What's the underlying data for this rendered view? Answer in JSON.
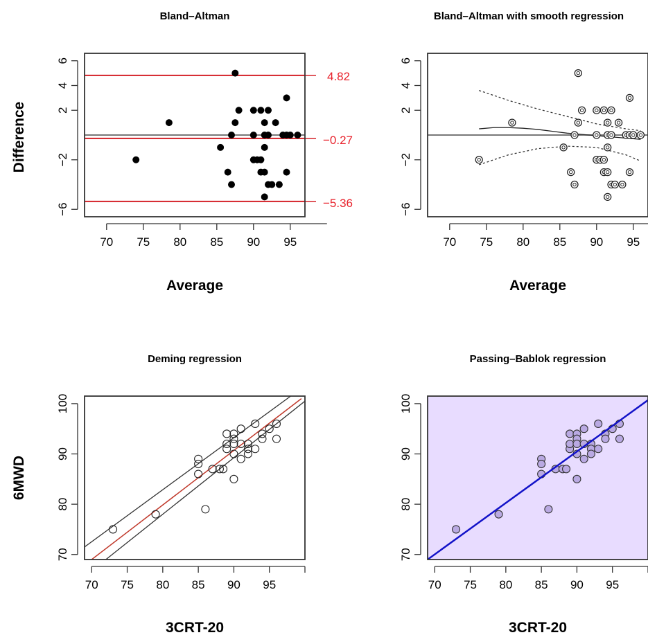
{
  "figure": {
    "ylabel_top": "Difference",
    "ylabel_bottom": "6MWD"
  },
  "colors": {
    "limit_line": "#d42027",
    "limit_text": "#e8212b",
    "pb_fill": "#e8dcff",
    "pb_line": "#1212c8",
    "pb_point": "#b9a9e2",
    "deming_line": "#c0392b"
  },
  "chart_data": [
    {
      "id": "bland_altman",
      "type": "scatter",
      "title": "Bland–Altman",
      "xlabel": "Average",
      "ylabel": "Difference",
      "xlim": [
        67,
        97
      ],
      "ylim": [
        -6.6,
        6.6
      ],
      "xticks": [
        70,
        75,
        80,
        85,
        90,
        95
      ],
      "yticks": [
        -6,
        -2,
        2,
        4,
        6
      ],
      "mean_diff": -0.27,
      "upper_loa": 4.82,
      "lower_loa": -5.36,
      "limit_labels": [
        "4.82",
        "−0.27",
        "−5.36"
      ],
      "points": [
        [
          74,
          -2
        ],
        [
          78.5,
          1
        ],
        [
          85.5,
          -1
        ],
        [
          86.5,
          -3
        ],
        [
          87,
          -4
        ],
        [
          87,
          0
        ],
        [
          87.5,
          1
        ],
        [
          87.5,
          5
        ],
        [
          88,
          2
        ],
        [
          90,
          2
        ],
        [
          90,
          -2
        ],
        [
          90,
          0
        ],
        [
          90.5,
          -2
        ],
        [
          91,
          2
        ],
        [
          91,
          -3
        ],
        [
          91,
          -2
        ],
        [
          91.5,
          0
        ],
        [
          91.5,
          1
        ],
        [
          91.5,
          -1
        ],
        [
          91.5,
          -5
        ],
        [
          91.5,
          -3
        ],
        [
          92,
          2
        ],
        [
          92,
          0
        ],
        [
          92,
          -4
        ],
        [
          92.5,
          -4
        ],
        [
          93,
          1
        ],
        [
          93.5,
          -4
        ],
        [
          94,
          0
        ],
        [
          94.5,
          0
        ],
        [
          94.5,
          3
        ],
        [
          94.5,
          -3
        ],
        [
          95,
          0
        ],
        [
          96,
          0
        ]
      ]
    },
    {
      "id": "bland_altman_smooth",
      "type": "scatter",
      "title": "Bland–Altman with smooth regression",
      "xlabel": "Average",
      "ylabel": "Difference",
      "xlim": [
        67,
        97
      ],
      "ylim": [
        -6.6,
        6.6
      ],
      "xticks": [
        70,
        75,
        80,
        85,
        90,
        95
      ],
      "yticks": [
        -6,
        -2,
        2,
        4,
        6
      ],
      "points": [
        [
          74,
          -2
        ],
        [
          78.5,
          1
        ],
        [
          85.5,
          -1
        ],
        [
          86.5,
          -3
        ],
        [
          87,
          -4
        ],
        [
          87,
          0
        ],
        [
          87.5,
          1
        ],
        [
          87.5,
          5
        ],
        [
          88,
          2
        ],
        [
          90,
          2
        ],
        [
          90,
          -2
        ],
        [
          90,
          0
        ],
        [
          90.5,
          -2
        ],
        [
          91,
          2
        ],
        [
          91,
          -3
        ],
        [
          91,
          -2
        ],
        [
          91.5,
          0
        ],
        [
          91.5,
          1
        ],
        [
          91.5,
          -1
        ],
        [
          91.5,
          -5
        ],
        [
          91.5,
          -3
        ],
        [
          92,
          2
        ],
        [
          92,
          0
        ],
        [
          92,
          -4
        ],
        [
          92.5,
          -4
        ],
        [
          93,
          1
        ],
        [
          93.5,
          -4
        ],
        [
          94,
          0
        ],
        [
          94.5,
          0
        ],
        [
          94.5,
          3
        ],
        [
          94.5,
          -3
        ],
        [
          95,
          0
        ],
        [
          96,
          0
        ]
      ],
      "smooth_fit": [
        [
          74,
          0.5
        ],
        [
          76,
          0.6
        ],
        [
          78,
          0.6
        ],
        [
          80,
          0.55
        ],
        [
          82,
          0.45
        ],
        [
          84,
          0.3
        ],
        [
          86,
          0.15
        ],
        [
          88,
          0.05
        ],
        [
          90,
          -0.05
        ],
        [
          92,
          -0.15
        ],
        [
          94,
          -0.25
        ],
        [
          96,
          -0.35
        ]
      ],
      "smooth_upper": [
        [
          74,
          3.6
        ],
        [
          78,
          2.8
        ],
        [
          82,
          2.1
        ],
        [
          86,
          1.5
        ],
        [
          90,
          0.9
        ],
        [
          94,
          0.5
        ],
        [
          96,
          0.35
        ]
      ],
      "smooth_lower": [
        [
          74,
          -2.4
        ],
        [
          78,
          -1.6
        ],
        [
          82,
          -1.1
        ],
        [
          86,
          -0.9
        ],
        [
          90,
          -1.0
        ],
        [
          94,
          -1.6
        ],
        [
          96,
          -2.1
        ]
      ]
    },
    {
      "id": "deming",
      "type": "scatter",
      "title": "Deming regression",
      "xlabel": "3CRT-20",
      "ylabel": "6MWD",
      "xlim": [
        69,
        100
      ],
      "ylim": [
        69,
        101.5
      ],
      "xticks": [
        70,
        75,
        80,
        85,
        90,
        95
      ],
      "yticks": [
        70,
        80,
        90,
        100
      ],
      "points": [
        [
          73,
          75
        ],
        [
          79,
          78
        ],
        [
          85,
          89
        ],
        [
          85,
          88
        ],
        [
          85,
          86
        ],
        [
          86,
          79
        ],
        [
          87,
          87
        ],
        [
          88,
          87
        ],
        [
          88.5,
          87
        ],
        [
          89,
          91
        ],
        [
          89,
          92
        ],
        [
          89,
          94
        ],
        [
          90,
          94
        ],
        [
          90,
          93
        ],
        [
          90,
          92
        ],
        [
          90,
          90
        ],
        [
          90,
          85
        ],
        [
          91,
          95
        ],
        [
          91,
          92
        ],
        [
          91,
          89
        ],
        [
          92,
          92
        ],
        [
          92,
          91
        ],
        [
          92,
          90
        ],
        [
          93,
          96
        ],
        [
          93,
          91
        ],
        [
          94,
          94
        ],
        [
          94,
          93
        ],
        [
          95,
          95
        ],
        [
          96,
          96
        ],
        [
          96,
          93
        ]
      ],
      "fit_line": [
        [
          70,
          69
        ],
        [
          99.5,
          101
        ]
      ],
      "ci_upper": [
        [
          69,
          71.5
        ],
        [
          98,
          101.5
        ]
      ],
      "ci_lower": [
        [
          72,
          69
        ],
        [
          100,
          100.5
        ]
      ]
    },
    {
      "id": "passing_bablok",
      "type": "scatter",
      "title": "Passing–Bablok regression",
      "xlabel": "3CRT-20",
      "ylabel": "6MWD",
      "xlim": [
        69,
        100
      ],
      "ylim": [
        69,
        101.5
      ],
      "xticks": [
        70,
        75,
        80,
        85,
        90,
        95
      ],
      "yticks": [
        70,
        80,
        90,
        100
      ],
      "points": [
        [
          73,
          75
        ],
        [
          79,
          78
        ],
        [
          85,
          89
        ],
        [
          85,
          88
        ],
        [
          85,
          86
        ],
        [
          86,
          79
        ],
        [
          87,
          87
        ],
        [
          88,
          87
        ],
        [
          88.5,
          87
        ],
        [
          89,
          91
        ],
        [
          89,
          92
        ],
        [
          89,
          94
        ],
        [
          90,
          94
        ],
        [
          90,
          93
        ],
        [
          90,
          92
        ],
        [
          90,
          90
        ],
        [
          90,
          85
        ],
        [
          91,
          95
        ],
        [
          91,
          92
        ],
        [
          91,
          89
        ],
        [
          92,
          92
        ],
        [
          92,
          91
        ],
        [
          92,
          90
        ],
        [
          93,
          96
        ],
        [
          93,
          91
        ],
        [
          94,
          94
        ],
        [
          94,
          93
        ],
        [
          95,
          95
        ],
        [
          96,
          96
        ],
        [
          96,
          93
        ]
      ],
      "fit_line": [
        [
          69,
          69
        ],
        [
          100,
          100.7
        ]
      ]
    }
  ]
}
